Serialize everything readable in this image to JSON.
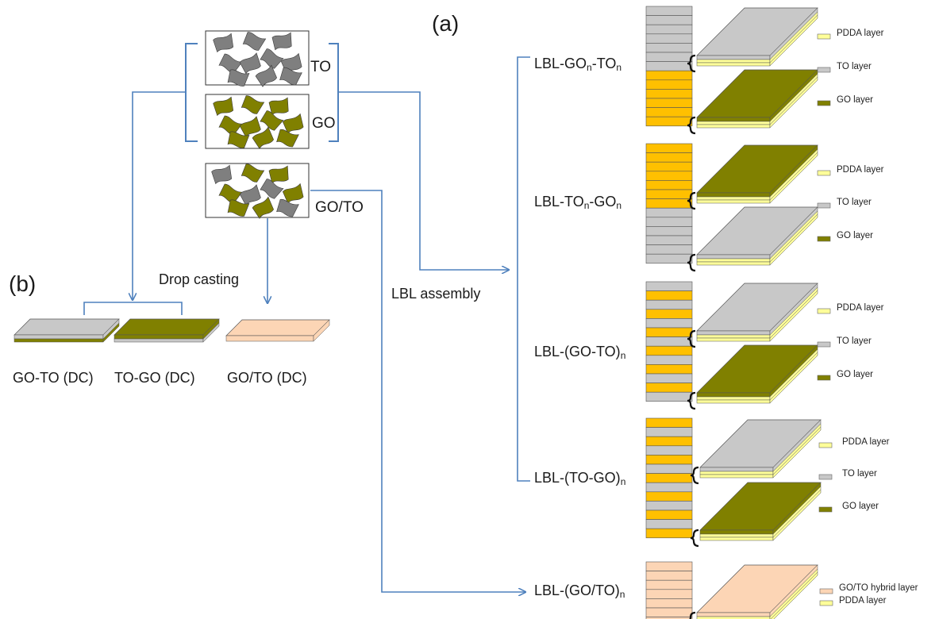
{
  "panel_a_label": "(a)",
  "panel_b_label": "(b)",
  "nanosheet_boxes": {
    "to": "TO",
    "go": "GO",
    "mix": "GO/TO"
  },
  "process": {
    "drop_casting": "Drop casting",
    "lbl_assembly": "LBL assembly"
  },
  "drop_cast_films": [
    "GO-TO (DC)",
    "TO-GO (DC)",
    "GO/TO (DC)"
  ],
  "lbl_films": [
    {
      "prefix": "LBL-GO",
      "sub1": "n",
      "mid": "-TO",
      "sub2": "n",
      "suffix": ""
    },
    {
      "prefix": "LBL-TO",
      "sub1": "n",
      "mid": "-GO",
      "sub2": "n",
      "suffix": ""
    },
    {
      "prefix": "LBL-(GO-TO)",
      "sub1": "n",
      "mid": "",
      "sub2": "",
      "suffix": ""
    },
    {
      "prefix": "LBL-(TO-GO)",
      "sub1": "n",
      "mid": "",
      "sub2": "",
      "suffix": ""
    },
    {
      "prefix": "LBL-(GO/TO)",
      "sub1": "n",
      "mid": "",
      "sub2": "",
      "suffix": ""
    }
  ],
  "legend": {
    "pdda": "PDDA layer",
    "to": "TO layer",
    "go": "GO layer",
    "hybrid": "GO/TO hybrid layer"
  },
  "colors": {
    "to": "#c8c8c8",
    "go": "#808000",
    "pdda": "#ffff99",
    "hybrid": "#fcd5b5",
    "gold": "#ffc000",
    "arrow": "#4f81bd"
  }
}
